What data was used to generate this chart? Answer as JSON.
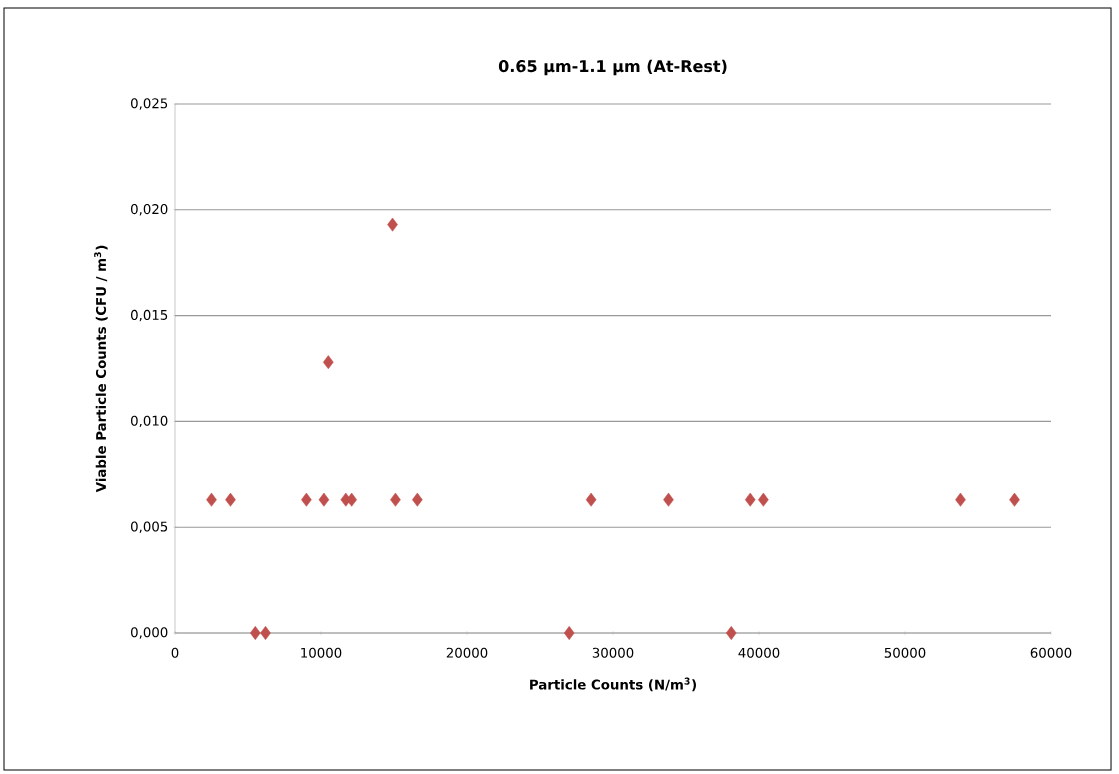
{
  "chart_data": {
    "type": "scatter",
    "title": "0.65 µm-1.1 µm (At-Rest)",
    "xlabel": "Particle Counts (N/m$^{3}$)",
    "ylabel": "Viable Particle Counts (CFU / m$^{3}$)",
    "xlim": [
      0,
      60000
    ],
    "xticks": [
      0,
      10000,
      20000,
      30000,
      40000,
      50000,
      60000
    ],
    "ylim": [
      0,
      0.025
    ],
    "yticks": [
      {
        "value": 0,
        "label": "0,000"
      },
      {
        "value": 0.005,
        "label": "0,005"
      },
      {
        "value": 0.01,
        "label": "0,010"
      },
      {
        "value": 0.015,
        "label": "0,015"
      },
      {
        "value": 0.02,
        "label": "0,020"
      },
      {
        "value": 0.025,
        "label": "0,025"
      }
    ],
    "grid": "y",
    "marker": "diamond",
    "series": [
      {
        "color": "#c0504d",
        "x": [
          2500,
          3800,
          5500,
          6200,
          9000,
          10200,
          10500,
          11700,
          12100,
          14900,
          15100,
          16600,
          27000,
          28500,
          33800,
          38100,
          39400,
          40300,
          53800,
          57500
        ],
        "values": [
          0.0063,
          0.0063,
          0,
          0,
          0.0063,
          0.0063,
          0.0128,
          0.0063,
          0.0063,
          0.0193,
          0.0063,
          0.0063,
          0,
          0.0063,
          0.0063,
          0,
          0.0063,
          0.0063,
          0.0063,
          0.0063
        ]
      }
    ]
  }
}
